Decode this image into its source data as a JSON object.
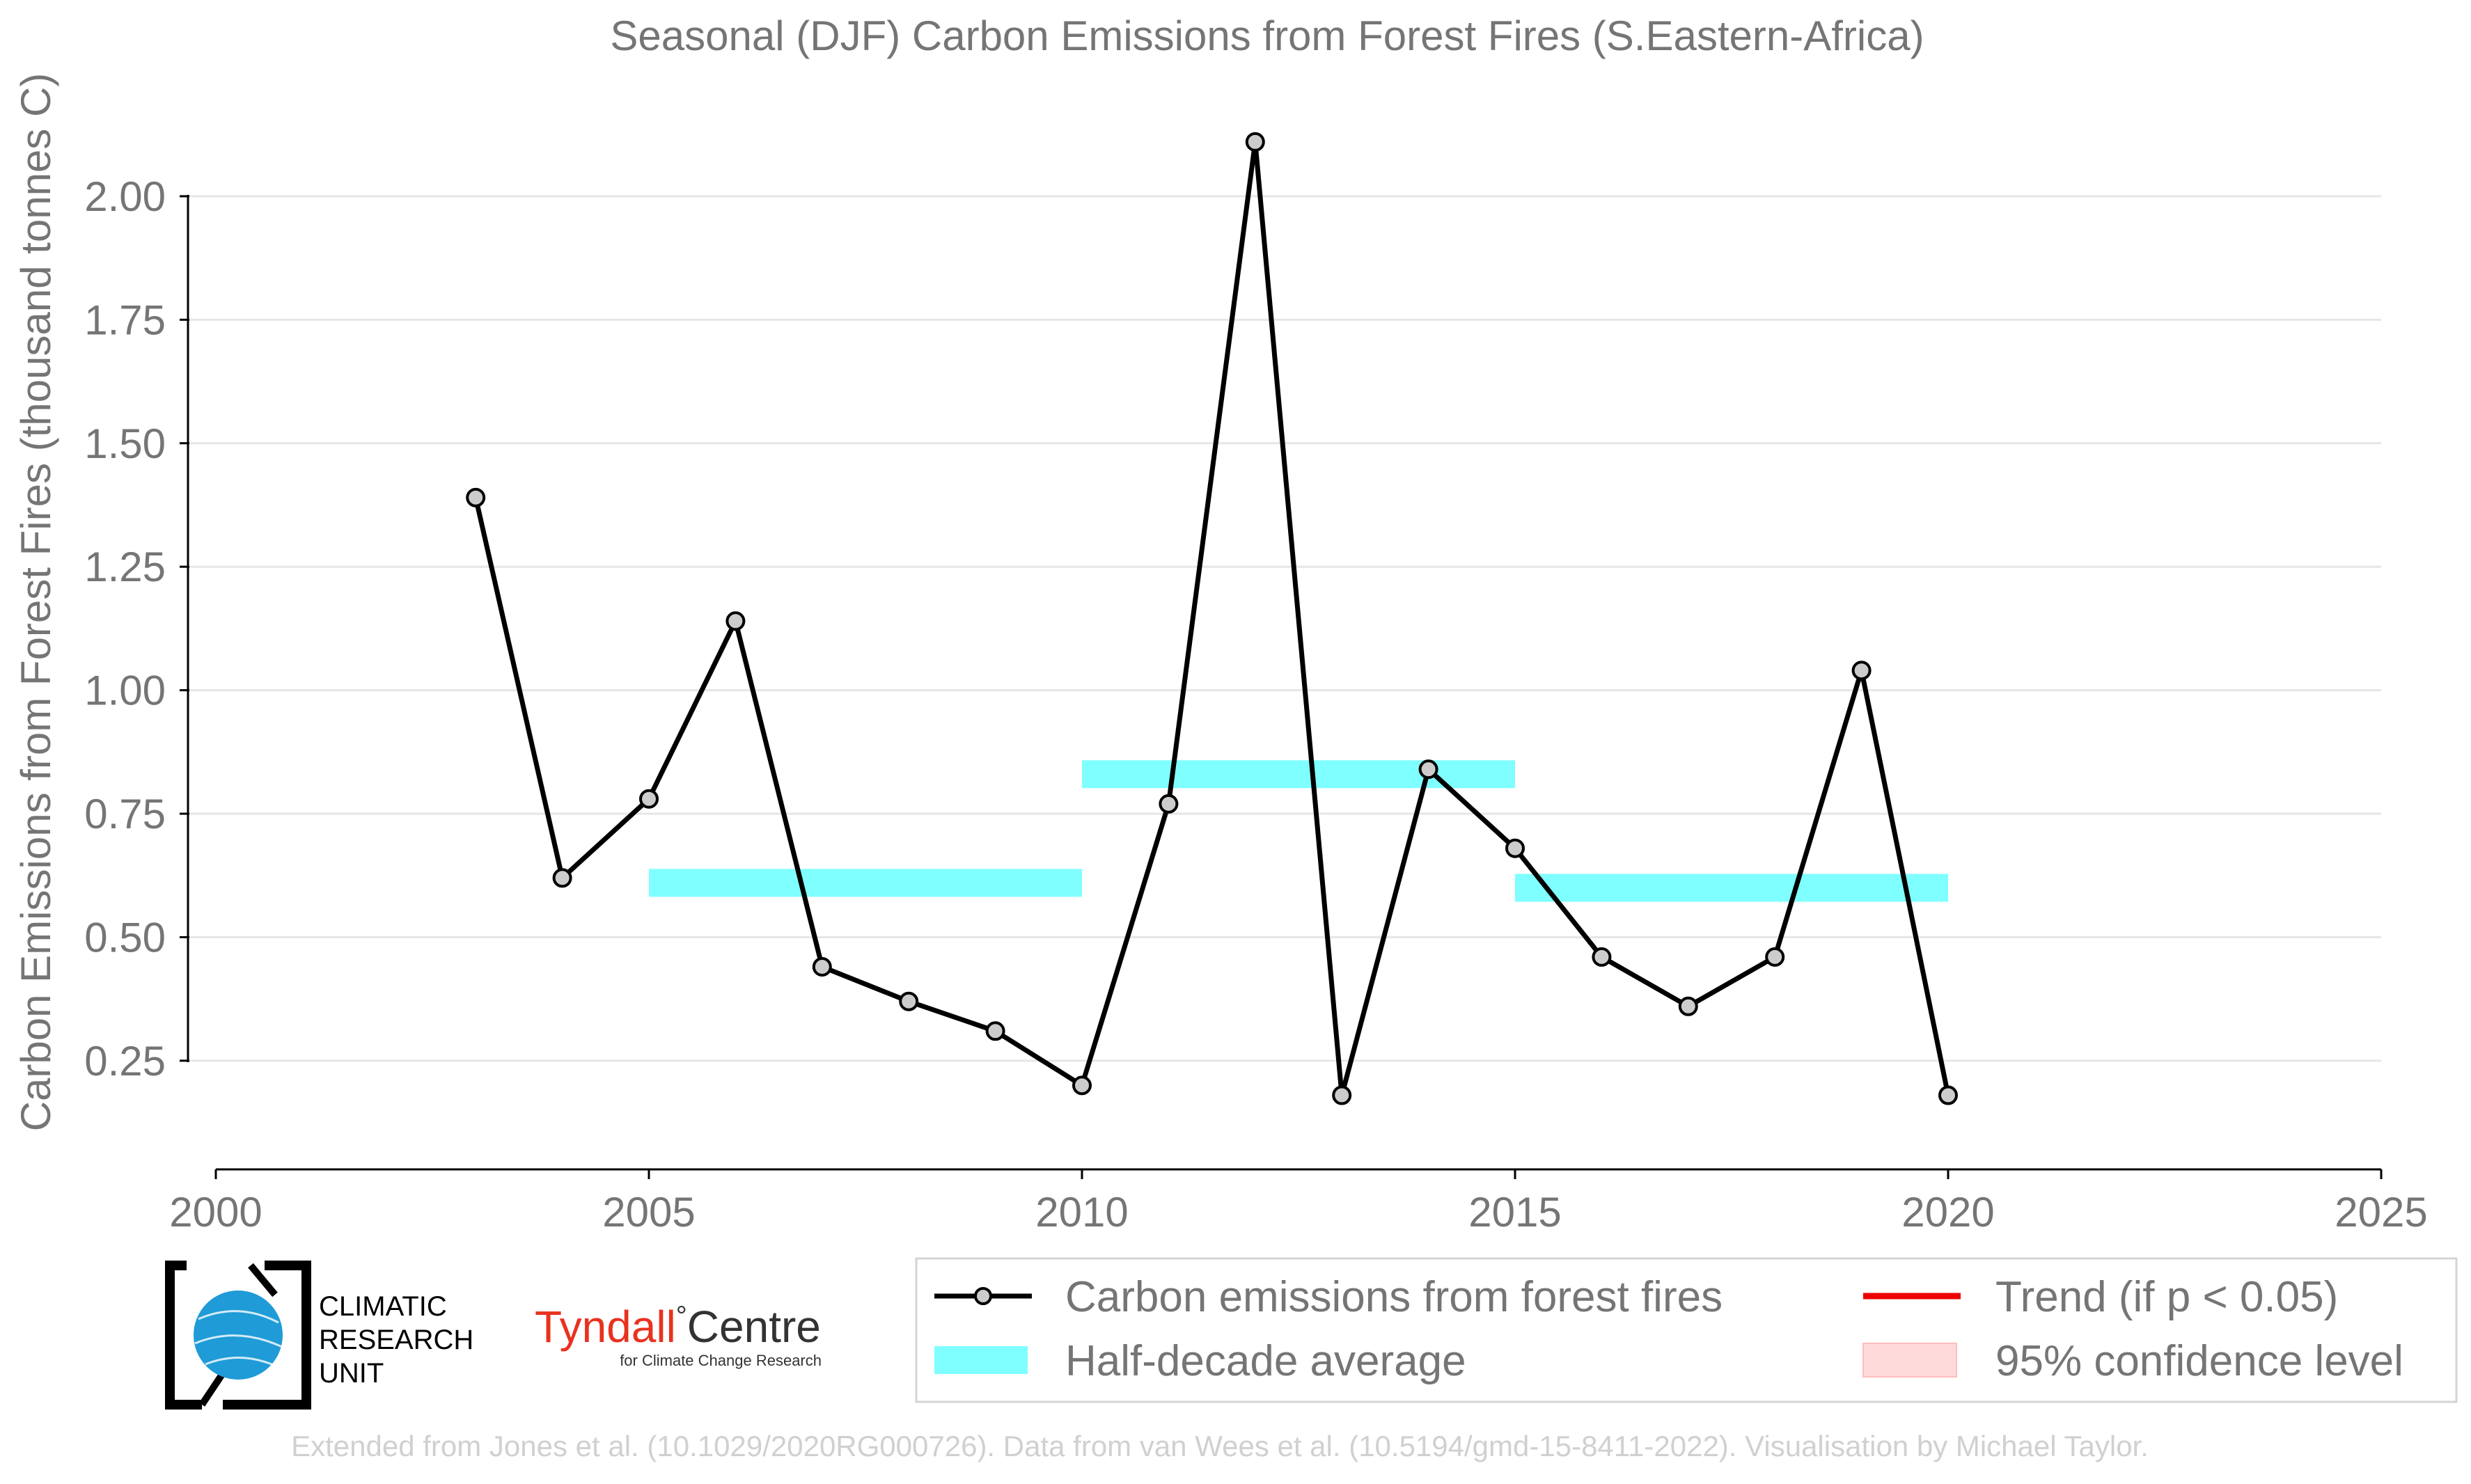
{
  "title": "Seasonal (DJF) Carbon Emissions from Forest Fires (S.Eastern-Africa)",
  "colors": {
    "series": "#000000",
    "marker_fill": "#cccccc",
    "half_decade": "#7fffff",
    "trend": "#ee0000",
    "confidence": "#ffdada",
    "grid": "#e6e6e6",
    "text": "#757575",
    "footer": "#d0d0d0",
    "tyndall_red": "#e8321e"
  },
  "legend": {
    "series_label": "Carbon emissions from forest fires",
    "half_decade_label": "Half-decade average",
    "trend_label": "Trend (if p < 0.05)",
    "confidence_label": "95% confidence level"
  },
  "logos": {
    "cru_line1": "CLIMATIC",
    "cru_line2": "RESEARCH",
    "cru_line3": "UNIT",
    "tyndall_name": "Tyndall",
    "tyndall_degree": "°",
    "tyndall_centre": "Centre",
    "tyndall_sub": "for Climate Change Research"
  },
  "footer": "Extended from Jones et al. (10.1029/2020RG000726). Data from van Wees et al. (10.5194/gmd-15-8411-2022). Visualisation by Michael Taylor.",
  "chart_data": {
    "type": "line",
    "title": "Seasonal (DJF) Carbon Emissions from Forest Fires (S.Eastern-Africa)",
    "xlabel": "",
    "ylabel": "Carbon Emissions from Forest Fires (thousand tonnes C)",
    "xlim": [
      2000,
      2025
    ],
    "ylim": [
      0.03,
      2.2
    ],
    "x_ticks": [
      2000,
      2005,
      2010,
      2015,
      2020,
      2025
    ],
    "y_ticks": [
      0.25,
      0.5,
      0.75,
      1.0,
      1.25,
      1.5,
      1.75,
      2.0
    ],
    "y_tick_labels": [
      "0.25",
      "0.50",
      "0.75",
      "1.00",
      "1.25",
      "1.50",
      "1.75",
      "2.00"
    ],
    "grid": "horizontal",
    "legend_position": "bottom-right",
    "series": [
      {
        "name": "Carbon emissions from forest fires",
        "x": [
          2003,
          2004,
          2005,
          2006,
          2007,
          2008,
          2009,
          2010,
          2011,
          2012,
          2013,
          2014,
          2015,
          2016,
          2017,
          2018,
          2019,
          2020
        ],
        "values": [
          1.39,
          0.62,
          0.78,
          1.14,
          0.44,
          0.37,
          0.31,
          0.2,
          0.77,
          2.11,
          0.18,
          0.84,
          0.68,
          0.46,
          0.36,
          0.46,
          1.04,
          0.18
        ]
      }
    ],
    "half_decade_averages": [
      {
        "start": 2005,
        "end": 2010,
        "value": 0.61
      },
      {
        "start": 2010,
        "end": 2015,
        "value": 0.83
      },
      {
        "start": 2015,
        "end": 2020,
        "value": 0.6
      }
    ]
  }
}
